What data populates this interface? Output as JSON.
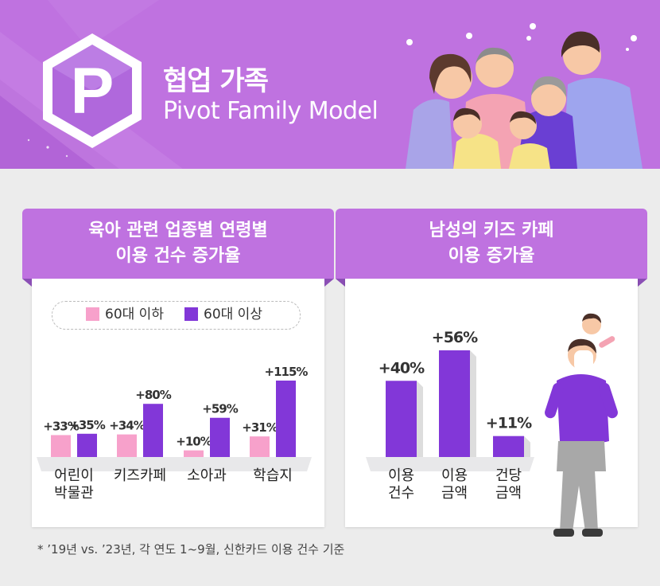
{
  "header": {
    "logo_letter": "P",
    "title_ko": "협업 가족",
    "title_en": "Pivot Family Model",
    "bg_color": "#bf72e0"
  },
  "chart_data": [
    {
      "type": "bar",
      "title": "육아 관련 업종별 연령별 이용 건수 증가율",
      "title_lines": [
        "육아 관련 업종별 연령별",
        "이용 건수 증가율"
      ],
      "categories": [
        "어린이 박물관",
        "키즈카페",
        "소아과",
        "학습지"
      ],
      "category_lines": [
        [
          "어린이",
          "박물관"
        ],
        [
          "키즈카페"
        ],
        [
          "소아과"
        ],
        [
          "학습지"
        ]
      ],
      "series": [
        {
          "name": "60대 이하",
          "values": [
            33,
            34,
            10,
            31
          ],
          "color": "#f7a1cb",
          "labels": [
            "+33%",
            "+34%",
            "+10%",
            "+31%"
          ]
        },
        {
          "name": "60대 이상",
          "values": [
            35,
            80,
            59,
            115
          ],
          "color": "#8237d8",
          "labels": [
            "+35%",
            "+80%",
            "+59%",
            "+115%"
          ]
        }
      ],
      "legend": "top",
      "ylim": [
        0,
        115
      ],
      "grid": false
    },
    {
      "type": "bar",
      "title": "남성의 키즈 카페 이용 증가율",
      "title_lines": [
        "남성의 키즈 카페",
        "이용 증가율"
      ],
      "categories": [
        "이용 건수",
        "이용 금액",
        "건당 금액"
      ],
      "category_lines": [
        [
          "이용",
          "건수"
        ],
        [
          "이용",
          "금액"
        ],
        [
          "건당",
          "금액"
        ]
      ],
      "values": [
        40,
        56,
        11
      ],
      "labels": [
        "+40%",
        "+56%",
        "+11%"
      ],
      "color": "#8237d8",
      "ylim": [
        0,
        56
      ],
      "grid": false
    }
  ],
  "footnote": "*  ’19년 vs. ’23년, 각 연도 1~9월, 신한카드 이용 건수 기준"
}
